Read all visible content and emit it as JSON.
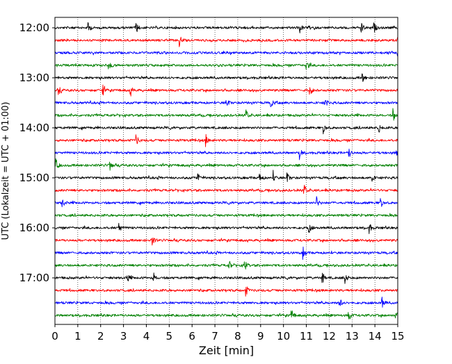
{
  "chart_data": {
    "type": "line",
    "title": "",
    "xlabel": "Zeit  [min]",
    "ylabel": "UTC (Lokalzeit = UTC + 01:00)",
    "xlim": [
      0,
      15
    ],
    "x_ticks": [
      "0",
      "1",
      "2",
      "3",
      "4",
      "5",
      "6",
      "7",
      "8",
      "9",
      "10",
      "11",
      "12",
      "13",
      "14",
      "15"
    ],
    "y_tick_labels": [
      "12:00",
      "13:00",
      "14:00",
      "15:00",
      "16:00",
      "17:00"
    ],
    "grid": "vertical-dotted",
    "trace_interval_min": 15,
    "color_cycle": [
      "#000000",
      "#ff0000",
      "#0000ff",
      "#008000"
    ],
    "series": [
      {
        "start": "12:00",
        "events": [
          1.45,
          3.55,
          10.7,
          13.4,
          13.95
        ]
      },
      {
        "start": "12:15",
        "events": [
          5.45,
          15.0
        ]
      },
      {
        "start": "12:30",
        "events": [
          15.0
        ]
      },
      {
        "start": "12:45",
        "events": [
          2.35,
          11.0
        ]
      },
      {
        "start": "13:00",
        "events": [
          13.45
        ]
      },
      {
        "start": "13:15",
        "events": [
          0.15,
          2.1,
          3.3,
          11.15
        ]
      },
      {
        "start": "13:30",
        "events": [
          7.5,
          9.45,
          11.8
        ]
      },
      {
        "start": "13:45",
        "events": [
          8.35,
          14.8
        ]
      },
      {
        "start": "14:00",
        "events": [
          11.75,
          14.15
        ]
      },
      {
        "start": "14:15",
        "events": [
          3.55,
          6.6
        ]
      },
      {
        "start": "14:30",
        "events": [
          10.7,
          12.85,
          14.95
        ]
      },
      {
        "start": "14:45",
        "events": [
          0.05,
          2.4
        ]
      },
      {
        "start": "15:00",
        "events": [
          6.25,
          8.95,
          9.55,
          10.15,
          13.85
        ]
      },
      {
        "start": "15:15",
        "events": [
          10.9
        ]
      },
      {
        "start": "15:30",
        "events": [
          0.3,
          11.45,
          14.25
        ]
      },
      {
        "start": "15:45",
        "events": []
      },
      {
        "start": "16:00",
        "events": [
          2.8,
          11.1,
          13.75
        ]
      },
      {
        "start": "16:15",
        "events": [
          4.25
        ]
      },
      {
        "start": "16:30",
        "events": [
          10.85
        ]
      },
      {
        "start": "16:45",
        "events": [
          7.6,
          8.3
        ]
      },
      {
        "start": "17:00",
        "events": [
          3.15,
          4.3,
          11.7,
          12.7,
          15.0
        ]
      },
      {
        "start": "17:15",
        "events": [
          8.35
        ]
      },
      {
        "start": "17:30",
        "events": [
          12.45,
          14.3
        ]
      },
      {
        "start": "17:45",
        "events": [
          10.35,
          12.85,
          14.9
        ]
      }
    ]
  }
}
